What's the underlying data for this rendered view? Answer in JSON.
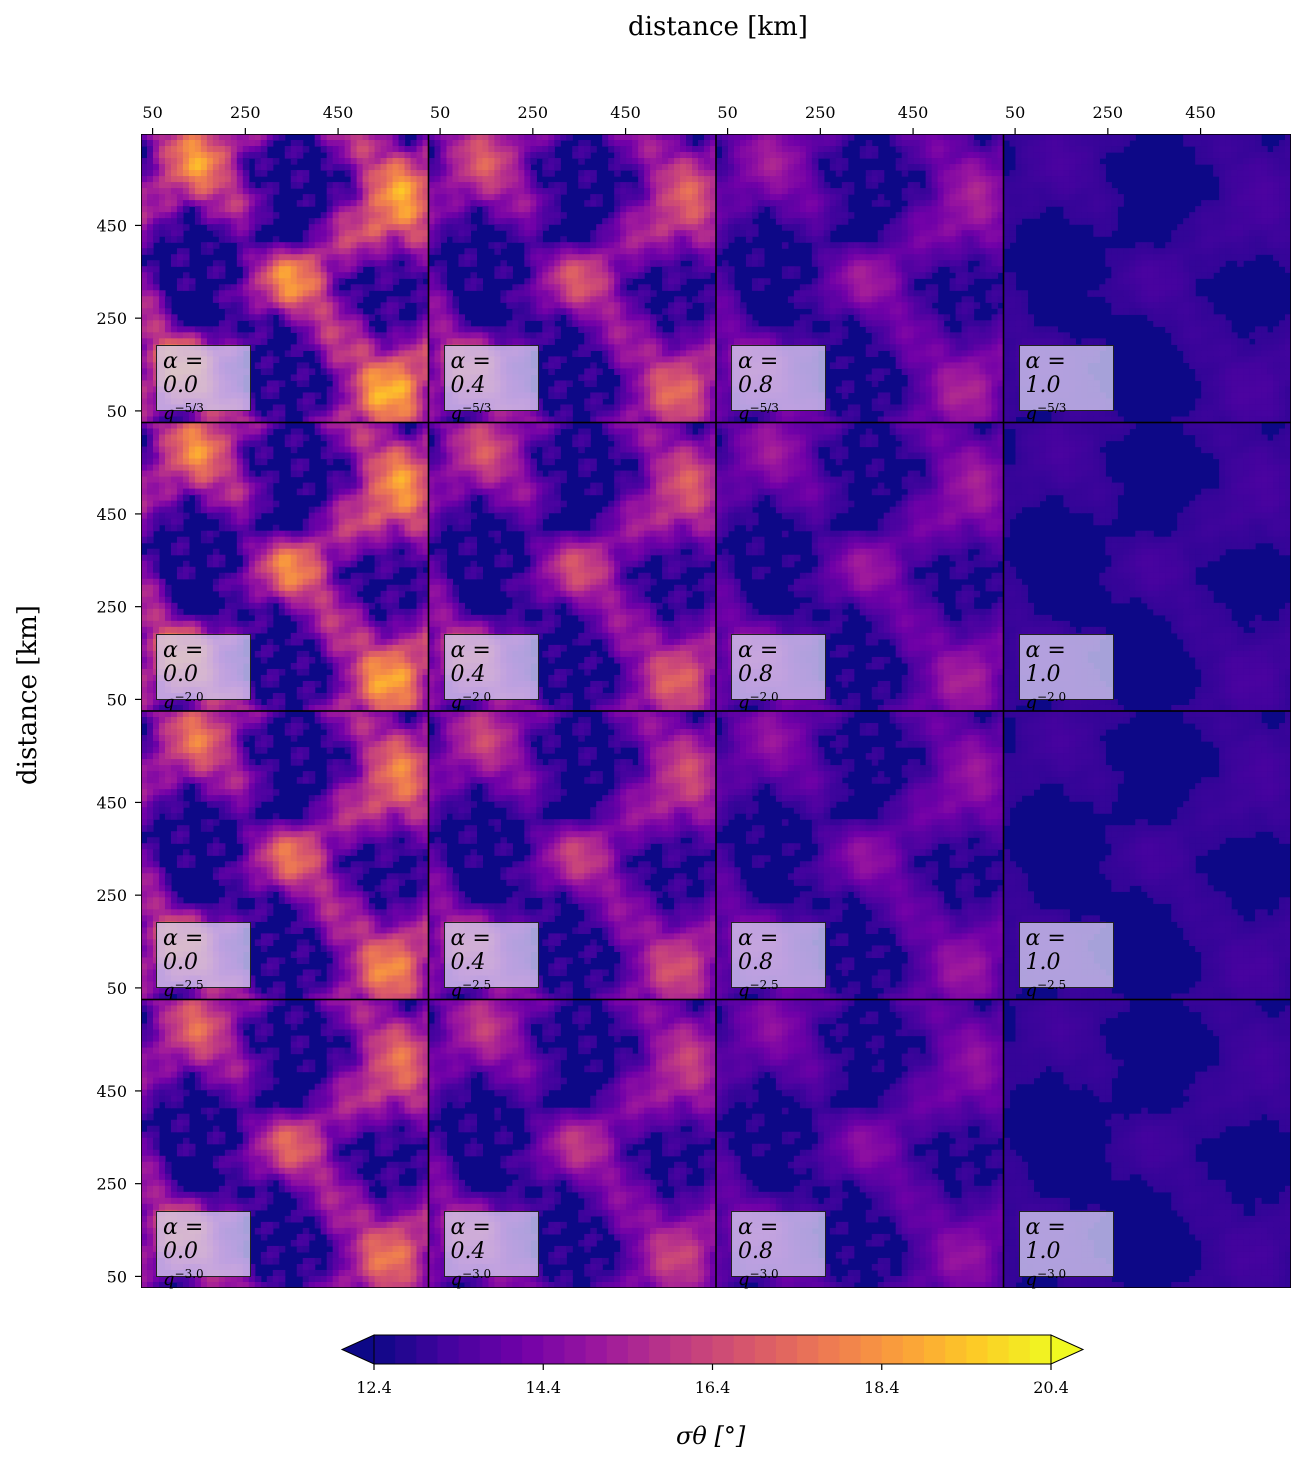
{
  "figure": {
    "supxlabel": "distance [km]",
    "supylabel": "distance [km]",
    "colorbar_label": "σθ [°]"
  },
  "chart_data": {
    "type": "heatmap",
    "layout": "4x4 panel grid",
    "panel_rows": [
      {
        "spectrum": "q",
        "exponent": "−5/3"
      },
      {
        "spectrum": "q",
        "exponent": "−2.0"
      },
      {
        "spectrum": "q",
        "exponent": "−2.5"
      },
      {
        "spectrum": "q",
        "exponent": "−3.0"
      }
    ],
    "panel_cols": [
      {
        "alpha_label": "α = 0.0",
        "alpha": 0.0,
        "intensity": 1.0
      },
      {
        "alpha_label": "α = 0.4",
        "alpha": 0.4,
        "intensity": 0.72
      },
      {
        "alpha_label": "α = 0.8",
        "alpha": 0.8,
        "intensity": 0.42
      },
      {
        "alpha_label": "α = 1.0",
        "alpha": 1.0,
        "intensity": 0.08
      }
    ],
    "row_intensity": [
      1.0,
      0.95,
      0.85,
      0.78
    ],
    "xticks": [
      "50",
      "250",
      "450"
    ],
    "xtick_values": [
      50,
      250,
      450
    ],
    "yticks": [
      "450",
      "250",
      "50"
    ],
    "ytick_values": [
      450,
      250,
      50
    ],
    "axis_range_km": [
      25,
      645
    ],
    "colormap": "plasma",
    "colorbar": {
      "min": 12.4,
      "max": 20.4,
      "levels": 32,
      "ticks": [
        "12.4",
        "14.4",
        "16.4",
        "18.4",
        "20.4"
      ],
      "extend": "both"
    }
  },
  "colors": {
    "plasma": [
      "#0d0887",
      "#46039f",
      "#7201a8",
      "#9c179e",
      "#bd3786",
      "#d8576b",
      "#ed7953",
      "#fb9f3a",
      "#fdca26",
      "#f0f921"
    ]
  }
}
